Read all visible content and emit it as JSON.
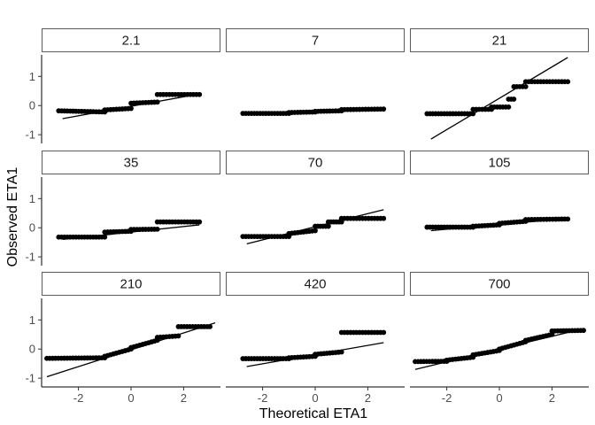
{
  "chart_data": {
    "type": "scatter",
    "title": "",
    "xlabel": "Theoretical ETA1",
    "ylabel": "Observed ETA1",
    "xlim": [
      -3.4,
      3.4
    ],
    "ylim": [
      -1.3,
      1.8
    ],
    "xticks": [
      -2,
      0,
      2
    ],
    "yticks": [
      -1,
      0,
      1
    ],
    "xtick_labels": [
      "-2",
      "0",
      "2"
    ],
    "ytick_labels": [
      "-1",
      "0",
      "1"
    ],
    "grid": false,
    "legend": "none",
    "facets": [
      {
        "label": "2.1",
        "line": {
          "x": [
            -2.6,
            2.6
          ],
          "y": [
            -0.45,
            0.4
          ]
        },
        "segments": [
          [
            -2.75,
            -1.0,
            -0.18,
            -0.22
          ],
          [
            -1.0,
            0.0,
            -0.15,
            -0.1
          ],
          [
            0.0,
            1.0,
            0.08,
            0.12
          ],
          [
            1.0,
            2.6,
            0.38,
            0.38
          ]
        ]
      },
      {
        "label": "7",
        "line": {
          "x": [
            -2.6,
            2.6
          ],
          "y": [
            -0.32,
            -0.08
          ]
        },
        "segments": [
          [
            -2.75,
            -1.0,
            -0.27,
            -0.27
          ],
          [
            -1.0,
            0.0,
            -0.24,
            -0.22
          ],
          [
            0.0,
            1.0,
            -0.2,
            -0.18
          ],
          [
            1.0,
            2.6,
            -0.14,
            -0.12
          ]
        ]
      },
      {
        "label": "21",
        "line": {
          "x": [
            -2.6,
            2.6
          ],
          "y": [
            -1.15,
            1.65
          ]
        },
        "segments": [
          [
            -2.75,
            -1.0,
            -0.28,
            -0.28
          ],
          [
            -1.0,
            -0.3,
            -0.13,
            -0.13
          ],
          [
            -0.3,
            0.35,
            -0.05,
            -0.05
          ],
          [
            0.35,
            0.55,
            0.22,
            0.22
          ],
          [
            0.55,
            1.0,
            0.65,
            0.65
          ],
          [
            1.0,
            2.6,
            0.82,
            0.82
          ]
        ]
      },
      {
        "label": "35",
        "line": {
          "x": [
            -2.6,
            2.6
          ],
          "y": [
            -0.4,
            0.1
          ]
        },
        "segments": [
          [
            -2.75,
            -1.0,
            -0.32,
            -0.32
          ],
          [
            -1.0,
            0.0,
            -0.15,
            -0.12
          ],
          [
            0.0,
            1.0,
            -0.06,
            -0.05
          ],
          [
            1.0,
            2.6,
            0.2,
            0.2
          ]
        ]
      },
      {
        "label": "70",
        "line": {
          "x": [
            -2.6,
            2.6
          ],
          "y": [
            -0.55,
            0.62
          ]
        },
        "segments": [
          [
            -2.75,
            -1.0,
            -0.3,
            -0.3
          ],
          [
            -1.0,
            0.0,
            -0.2,
            -0.1
          ],
          [
            0.0,
            0.5,
            0.05,
            0.05
          ],
          [
            0.5,
            1.0,
            0.2,
            0.2
          ],
          [
            1.0,
            2.6,
            0.32,
            0.32
          ]
        ]
      },
      {
        "label": "105",
        "line": {
          "x": [
            -2.6,
            2.6
          ],
          "y": [
            -0.1,
            0.32
          ]
        },
        "segments": [
          [
            -2.75,
            -1.0,
            0.02,
            0.02
          ],
          [
            -1.0,
            0.0,
            0.05,
            0.1
          ],
          [
            0.0,
            1.0,
            0.15,
            0.22
          ],
          [
            1.0,
            2.6,
            0.28,
            0.3
          ]
        ]
      },
      {
        "label": "210",
        "line": {
          "x": [
            -3.2,
            3.2
          ],
          "y": [
            -0.95,
            0.9
          ]
        },
        "segments": [
          [
            -3.2,
            -1.0,
            -0.32,
            -0.3
          ],
          [
            -1.0,
            0.0,
            -0.25,
            0.0
          ],
          [
            0.0,
            1.0,
            0.05,
            0.3
          ],
          [
            1.0,
            1.8,
            0.4,
            0.45
          ],
          [
            1.8,
            3.0,
            0.77,
            0.77
          ]
        ]
      },
      {
        "label": "420",
        "line": {
          "x": [
            -2.6,
            2.6
          ],
          "y": [
            -0.6,
            0.22
          ]
        },
        "segments": [
          [
            -2.75,
            -1.0,
            -0.33,
            -0.33
          ],
          [
            -1.0,
            0.0,
            -0.3,
            -0.25
          ],
          [
            0.0,
            1.0,
            -0.18,
            -0.1
          ],
          [
            1.0,
            2.6,
            0.57,
            0.57
          ]
        ]
      },
      {
        "label": "700",
        "line": {
          "x": [
            -3.2,
            3.2
          ],
          "y": [
            -0.7,
            0.7
          ]
        },
        "segments": [
          [
            -3.2,
            -2.0,
            -0.43,
            -0.42
          ],
          [
            -2.0,
            -1.0,
            -0.38,
            -0.28
          ],
          [
            -1.0,
            0.0,
            -0.2,
            -0.05
          ],
          [
            0.0,
            1.0,
            0.0,
            0.25
          ],
          [
            1.0,
            2.0,
            0.3,
            0.5
          ],
          [
            2.0,
            3.2,
            0.62,
            0.64
          ]
        ]
      }
    ]
  }
}
